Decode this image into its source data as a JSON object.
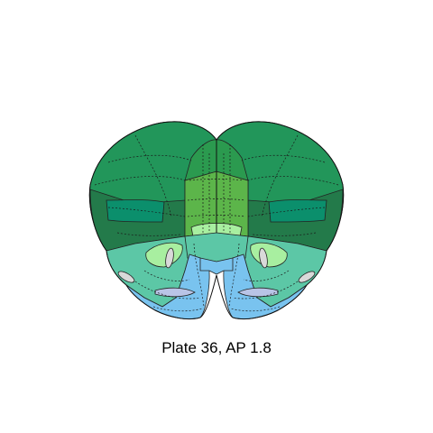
{
  "caption": "Plate 36, AP 1.8",
  "colors": {
    "cortex_dark": "#22965a",
    "cortex_mid": "#2b9a4f",
    "cortex_shade": "#237a4a",
    "cortex_teal": "#0b8f6c",
    "midline_light": "#5cb54a",
    "striatum_teal": "#5cc7a6",
    "pale_green": "#a8efa0",
    "ventral_blue": "#79c3ef",
    "ventricle_grey": "#d9d9d9",
    "accumbens_lavender": "#b9c4e6"
  }
}
